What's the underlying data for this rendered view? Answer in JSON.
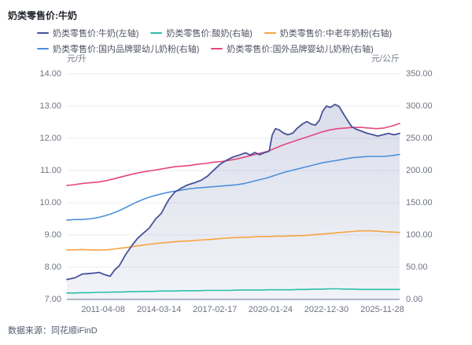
{
  "source": "数据来源：同花顺iFinD",
  "chart_data": {
    "type": "line",
    "title": "奶类零售价:牛奶",
    "grid": true,
    "legend_position": "top",
    "legend_rows": [
      [
        0,
        1,
        2
      ],
      [
        3,
        4
      ]
    ],
    "left_axis": {
      "unit": "元/升",
      "min": 7,
      "max": 14,
      "tick_labels": [
        "14.00",
        "13.00",
        "12.00",
        "11.00",
        "10.00",
        "9.00",
        "8.00",
        "7.00"
      ]
    },
    "right_axis": {
      "unit": "元/公斤",
      "min": 0,
      "max": 350,
      "tick_labels": [
        "350.00",
        "300.00",
        "250.00",
        "200.00",
        "150.00",
        "100.00",
        "50.00",
        "0.00"
      ]
    },
    "x_axis": {
      "tick_labels": [
        "2011-04-08",
        "2014-03-14",
        "2017-02-17",
        "2020-01-24",
        "2022-12-30",
        "2025-11-28"
      ],
      "tick_positions": [
        0.109,
        0.277,
        0.445,
        0.612,
        0.78,
        0.948
      ]
    },
    "series": [
      {
        "name": "奶类零售价:牛奶(左轴)",
        "axis": "left",
        "color": "#47519a",
        "area": true,
        "area_color_top": "rgba(71,87,153,0.20)",
        "area_color_bottom": "rgba(71,87,153,0.07)",
        "x": [
          0,
          0.024,
          0.047,
          0.064,
          0.083,
          0.097,
          0.113,
          0.13,
          0.144,
          0.158,
          0.177,
          0.196,
          0.213,
          0.229,
          0.248,
          0.267,
          0.284,
          0.298,
          0.307,
          0.324,
          0.343,
          0.362,
          0.383,
          0.404,
          0.423,
          0.442,
          0.461,
          0.48,
          0.499,
          0.518,
          0.537,
          0.551,
          0.565,
          0.579,
          0.593,
          0.608,
          0.617,
          0.627,
          0.638,
          0.65,
          0.664,
          0.679,
          0.693,
          0.707,
          0.721,
          0.735,
          0.747,
          0.759,
          0.768,
          0.78,
          0.792,
          0.806,
          0.818,
          0.83,
          0.842,
          0.856,
          0.87,
          0.884,
          0.901,
          0.917,
          0.934,
          0.95,
          0.967,
          0.983,
          1
        ],
        "values": [
          7.62,
          7.67,
          7.79,
          7.8,
          7.82,
          7.84,
          7.77,
          7.72,
          7.92,
          8.05,
          8.4,
          8.68,
          8.9,
          9.05,
          9.22,
          9.5,
          9.67,
          9.95,
          10.11,
          10.33,
          10.45,
          10.55,
          10.62,
          10.7,
          10.83,
          11.02,
          11.2,
          11.32,
          11.42,
          11.48,
          11.55,
          11.48,
          11.56,
          11.49,
          11.55,
          11.6,
          12.1,
          12.3,
          12.26,
          12.17,
          12.11,
          12.16,
          12.32,
          12.44,
          12.52,
          12.44,
          12.41,
          12.56,
          12.83,
          13.0,
          12.96,
          13.05,
          12.99,
          12.78,
          12.58,
          12.36,
          12.28,
          12.23,
          12.16,
          12.12,
          12.07,
          12.11,
          12.15,
          12.11,
          12.15
        ]
      },
      {
        "name": "奶类零售价:酸奶(右轴)",
        "axis": "right",
        "color": "#2abfa8",
        "values": [
          10,
          10,
          10.5,
          10.5,
          11,
          11,
          11.5,
          11.5,
          12,
          12,
          12.5,
          12.5,
          13,
          13,
          13,
          13.5,
          13.5,
          13.5,
          14,
          14,
          14,
          14,
          14.5,
          14.5,
          14.5,
          14.5,
          15,
          15,
          15,
          15,
          15.5,
          15.5,
          16,
          16,
          16.5,
          16.5,
          16,
          16,
          15.5,
          15.5,
          15.5,
          15.5,
          15.5,
          15.5
        ]
      },
      {
        "name": "奶类零售价:中老年奶粉(右轴)",
        "axis": "right",
        "color": "#f5a440",
        "values": [
          77,
          77,
          77.5,
          77,
          76.5,
          77,
          78,
          79.5,
          81,
          83,
          84.5,
          86,
          87.5,
          88.5,
          89.5,
          90.5,
          91,
          92,
          92.5,
          93.5,
          94.5,
          95.5,
          96,
          96.5,
          97,
          97.5,
          97.5,
          98,
          98,
          98.5,
          99,
          99.5,
          100.5,
          101.5,
          102.5,
          103.5,
          104.5,
          105.5,
          106.5,
          106.5,
          106,
          105,
          104.5,
          104
        ]
      },
      {
        "name": "奶类零售价:国内品牌婴幼儿奶粉(右轴)",
        "axis": "right",
        "color": "#4b90db",
        "values": [
          123,
          124,
          124,
          125,
          127,
          130,
          134,
          139,
          145,
          151,
          156,
          160,
          163,
          166,
          168,
          170,
          172,
          173,
          174,
          175,
          176,
          177,
          178,
          180,
          183,
          186,
          189,
          193,
          197,
          200,
          203,
          206,
          209,
          212,
          214,
          216,
          218,
          220,
          221,
          222,
          222,
          222,
          223,
          225
        ]
      },
      {
        "name": "奶类零售价:国外品牌婴幼儿奶粉(右轴)",
        "axis": "right",
        "color": "#e5457e",
        "values": [
          177,
          178,
          180,
          181,
          182,
          184,
          187,
          190,
          193,
          196,
          198,
          200,
          202,
          204,
          206,
          207,
          208,
          210,
          211,
          213,
          214,
          216,
          218,
          221,
          224,
          227,
          230,
          235,
          240,
          244,
          248,
          252,
          256,
          260,
          263,
          265,
          266,
          267,
          267,
          266,
          265,
          266,
          269,
          273
        ]
      }
    ]
  }
}
